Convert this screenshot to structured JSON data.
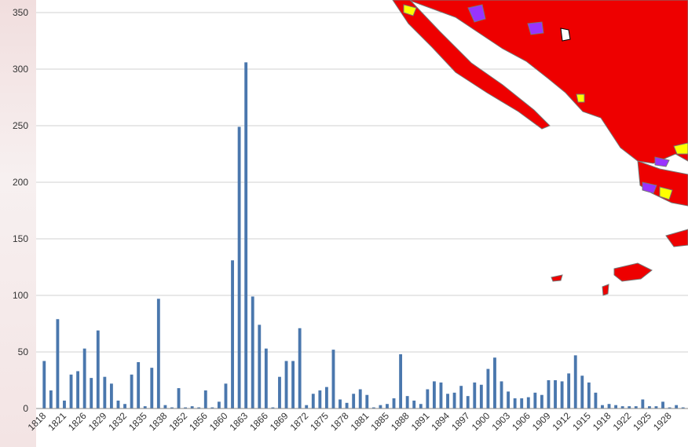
{
  "chart_data": {
    "type": "bar",
    "title": "",
    "xlabel": "",
    "ylabel": "",
    "ylim": [
      0,
      350
    ],
    "yticks": [
      0,
      50,
      100,
      150,
      200,
      250,
      300,
      350
    ],
    "grid": true,
    "legend": "none",
    "bar_color": "#4a77ad",
    "values": [
      42,
      16,
      79,
      7,
      30,
      33,
      53,
      27,
      69,
      28,
      22,
      7,
      4,
      30,
      41,
      2,
      36,
      97,
      3,
      1,
      18,
      1,
      2,
      1,
      16,
      1,
      6,
      22,
      131,
      249,
      306,
      99,
      74,
      53,
      1,
      28,
      42,
      42,
      71,
      3,
      13,
      16,
      19,
      52,
      8,
      5,
      13,
      17,
      12,
      1,
      3,
      4,
      9,
      48,
      11,
      7,
      4,
      17,
      24,
      23,
      13,
      14,
      20,
      11,
      23,
      21,
      35,
      45,
      24,
      15,
      9,
      9,
      10,
      14,
      12,
      25,
      25,
      24,
      31,
      47,
      29,
      23,
      14,
      3,
      4,
      3,
      2,
      2,
      2,
      8,
      2,
      2,
      6,
      1,
      3,
      1
    ],
    "tick_labels": [
      {
        "index": 0,
        "label": "1818"
      },
      {
        "index": 3,
        "label": "1821"
      },
      {
        "index": 6,
        "label": "1826"
      },
      {
        "index": 9,
        "label": "1829"
      },
      {
        "index": 12,
        "label": "1832"
      },
      {
        "index": 15,
        "label": "1835"
      },
      {
        "index": 18,
        "label": "1838"
      },
      {
        "index": 21,
        "label": "1852"
      },
      {
        "index": 24,
        "label": "1856"
      },
      {
        "index": 27,
        "label": "1860"
      },
      {
        "index": 30,
        "label": "1863"
      },
      {
        "index": 33,
        "label": "1866"
      },
      {
        "index": 36,
        "label": "1869"
      },
      {
        "index": 39,
        "label": "1872"
      },
      {
        "index": 42,
        "label": "1875"
      },
      {
        "index": 45,
        "label": "1878"
      },
      {
        "index": 48,
        "label": "1881"
      },
      {
        "index": 51,
        "label": "1885"
      },
      {
        "index": 54,
        "label": "1888"
      },
      {
        "index": 57,
        "label": "1891"
      },
      {
        "index": 60,
        "label": "1894"
      },
      {
        "index": 63,
        "label": "1897"
      },
      {
        "index": 66,
        "label": "1900"
      },
      {
        "index": 69,
        "label": "1903"
      },
      {
        "index": 72,
        "label": "1906"
      },
      {
        "index": 75,
        "label": "1909"
      },
      {
        "index": 78,
        "label": "1912"
      },
      {
        "index": 81,
        "label": "1915"
      },
      {
        "index": 84,
        "label": "1918"
      },
      {
        "index": 87,
        "label": "1922"
      },
      {
        "index": 90,
        "label": "1925"
      },
      {
        "index": 93,
        "label": "1928"
      }
    ]
  },
  "overlay": {
    "colors": {
      "land": "#ee0000",
      "border": "#777777",
      "purple": "#9933ff",
      "yellow": "#ffff00"
    }
  }
}
